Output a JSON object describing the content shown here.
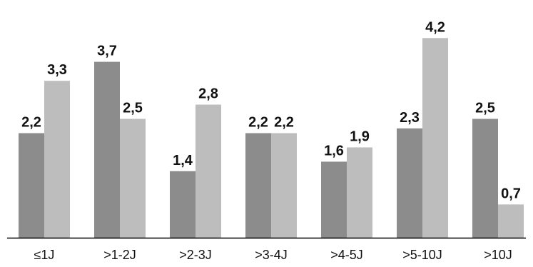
{
  "chart_data": {
    "type": "bar",
    "categories": [
      "≤1J",
      ">1-2J",
      ">2-3J",
      ">3-4J",
      ">4-5J",
      ">5-10J",
      ">10J"
    ],
    "series": [
      {
        "values": [
          2.2,
          3.7,
          1.4,
          2.2,
          1.6,
          2.3,
          2.5
        ],
        "color": "#8c8c8c"
      },
      {
        "values": [
          3.3,
          2.5,
          2.8,
          2.2,
          1.9,
          4.2,
          0.7
        ],
        "color": "#bdbdbd"
      }
    ],
    "value_labels": [
      [
        "2,2",
        "3,7",
        "1,4",
        "2,2",
        "1,6",
        "2,3",
        "2,5"
      ],
      [
        "3,3",
        "2,5",
        "2,8",
        "2,2",
        "1,9",
        "4,2",
        "0,7"
      ]
    ],
    "ylim": [
      0,
      4.7
    ],
    "grid": false,
    "legend": "none",
    "axis_color": "#000000"
  }
}
